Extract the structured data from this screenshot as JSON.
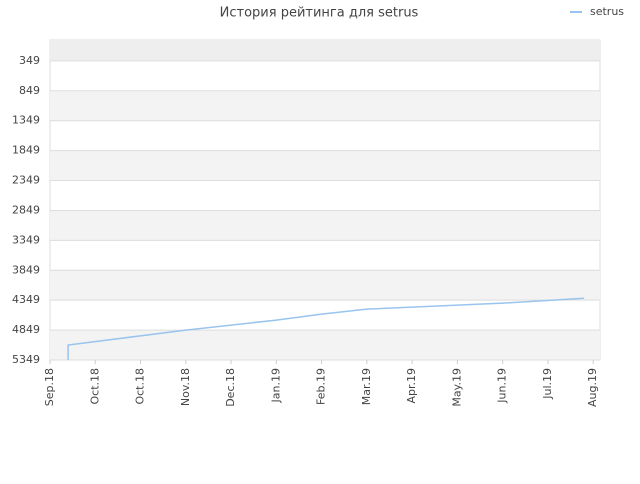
{
  "chart_data": {
    "type": "line",
    "title": "История рейтинга для setrus",
    "x": [
      0.4,
      0.4,
      3,
      5,
      6,
      7,
      8,
      10,
      11.8
    ],
    "series": [
      {
        "name": "setrus",
        "color": "#99c4ee",
        "values": [
          5349,
          5099,
          4849,
          4682,
          4582,
          4499,
          4466,
          4399,
          4316
        ]
      }
    ],
    "xlim": [
      0,
      12.15
    ],
    "xticks": [
      {
        "value": 0,
        "label": "Sep.18"
      },
      {
        "value": 1,
        "label": "Oct.18"
      },
      {
        "value": 2,
        "label": "Oct.18"
      },
      {
        "value": 3,
        "label": "Nov.18"
      },
      {
        "value": 4,
        "label": "Dec.18"
      },
      {
        "value": 5,
        "label": "Jan.19"
      },
      {
        "value": 6,
        "label": "Feb.19"
      },
      {
        "value": 7,
        "label": "Mar.19"
      },
      {
        "value": 8,
        "label": "Apr.19"
      },
      {
        "value": 9,
        "label": "May.19"
      },
      {
        "value": 10,
        "label": "Jun.19"
      },
      {
        "value": 11,
        "label": "Jul.19"
      },
      {
        "value": 12,
        "label": "Aug.19"
      }
    ],
    "ylim": [
      5349,
      0
    ],
    "yticks": [
      349,
      849,
      1349,
      1849,
      2349,
      2849,
      3349,
      3849,
      4349,
      4849,
      5349
    ],
    "grid": true,
    "legend": "top-right"
  }
}
